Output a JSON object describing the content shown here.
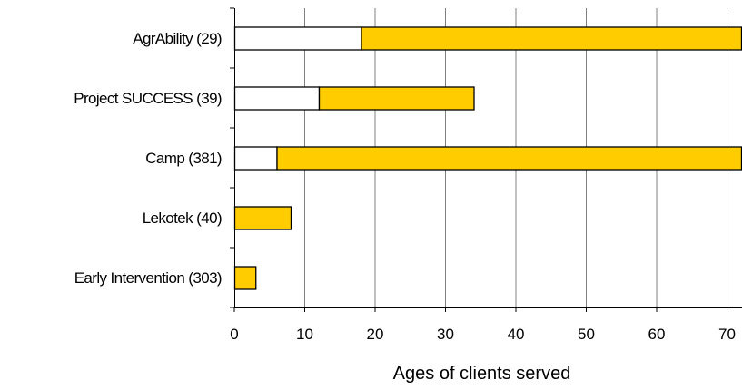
{
  "chart_data": {
    "type": "bar",
    "orientation": "horizontal",
    "stacked": true,
    "categories": [
      "AgrAbility (29)",
      "Project SUCCESS (39)",
      "Camp (381)",
      "Lekotek (40)",
      "Early Intervention (303)"
    ],
    "series": [
      {
        "values": [
          0,
          0,
          0,
          0,
          0
        ],
        "range_start": true
      },
      {
        "values": [
          18,
          12,
          6,
          0,
          0
        ],
        "color": "#ffffff"
      },
      {
        "values": [
          54,
          22,
          66,
          8,
          3
        ],
        "color": "#ffcc00"
      }
    ],
    "xlabel": "Ages of clients served",
    "xlim": [
      0,
      72
    ],
    "xticks": [
      0,
      10,
      20,
      30,
      40,
      50,
      60,
      70
    ],
    "grid": true,
    "colors": {
      "lower_segment": "#ffffff",
      "upper_segment": "#ffcc00",
      "grid": "#808080",
      "outline": "#000000"
    }
  }
}
